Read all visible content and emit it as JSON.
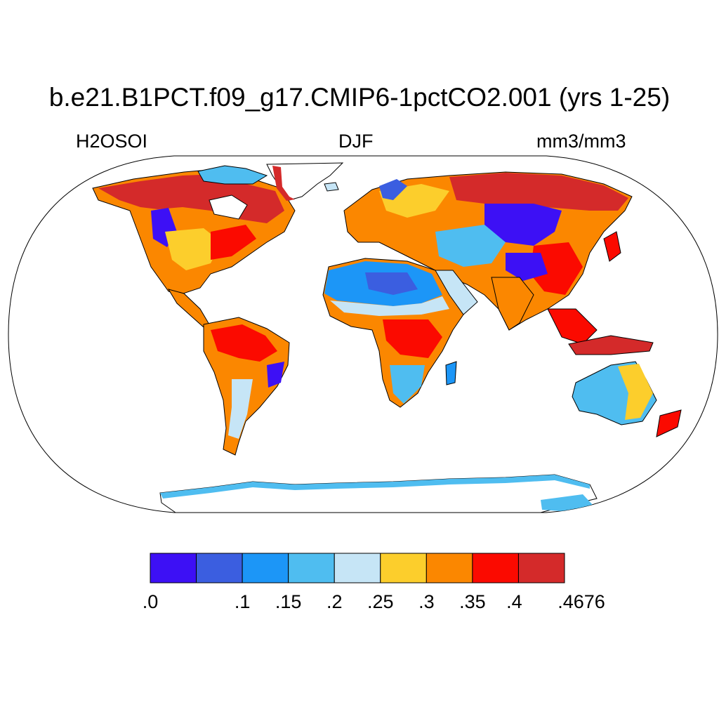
{
  "title": "b.e21.B1PCT.f09_g17.CMIP6-1pctCO2.001 (yrs 1-25)",
  "left_string": "H2OSOI",
  "center_string": "DJF",
  "right_string": "mm3/mm3",
  "colorbar": {
    "colors": [
      "#3d10f5",
      "#3b5ee0",
      "#1c96f7",
      "#4fbdf0",
      "#c6e5f6",
      "#fcce2c",
      "#fb8700",
      "#fb0a00",
      "#d42a2a"
    ],
    "labels": [
      ".0",
      ".1",
      ".15",
      ".2",
      ".25",
      ".3",
      ".35",
      ".4",
      ".4676"
    ]
  }
}
